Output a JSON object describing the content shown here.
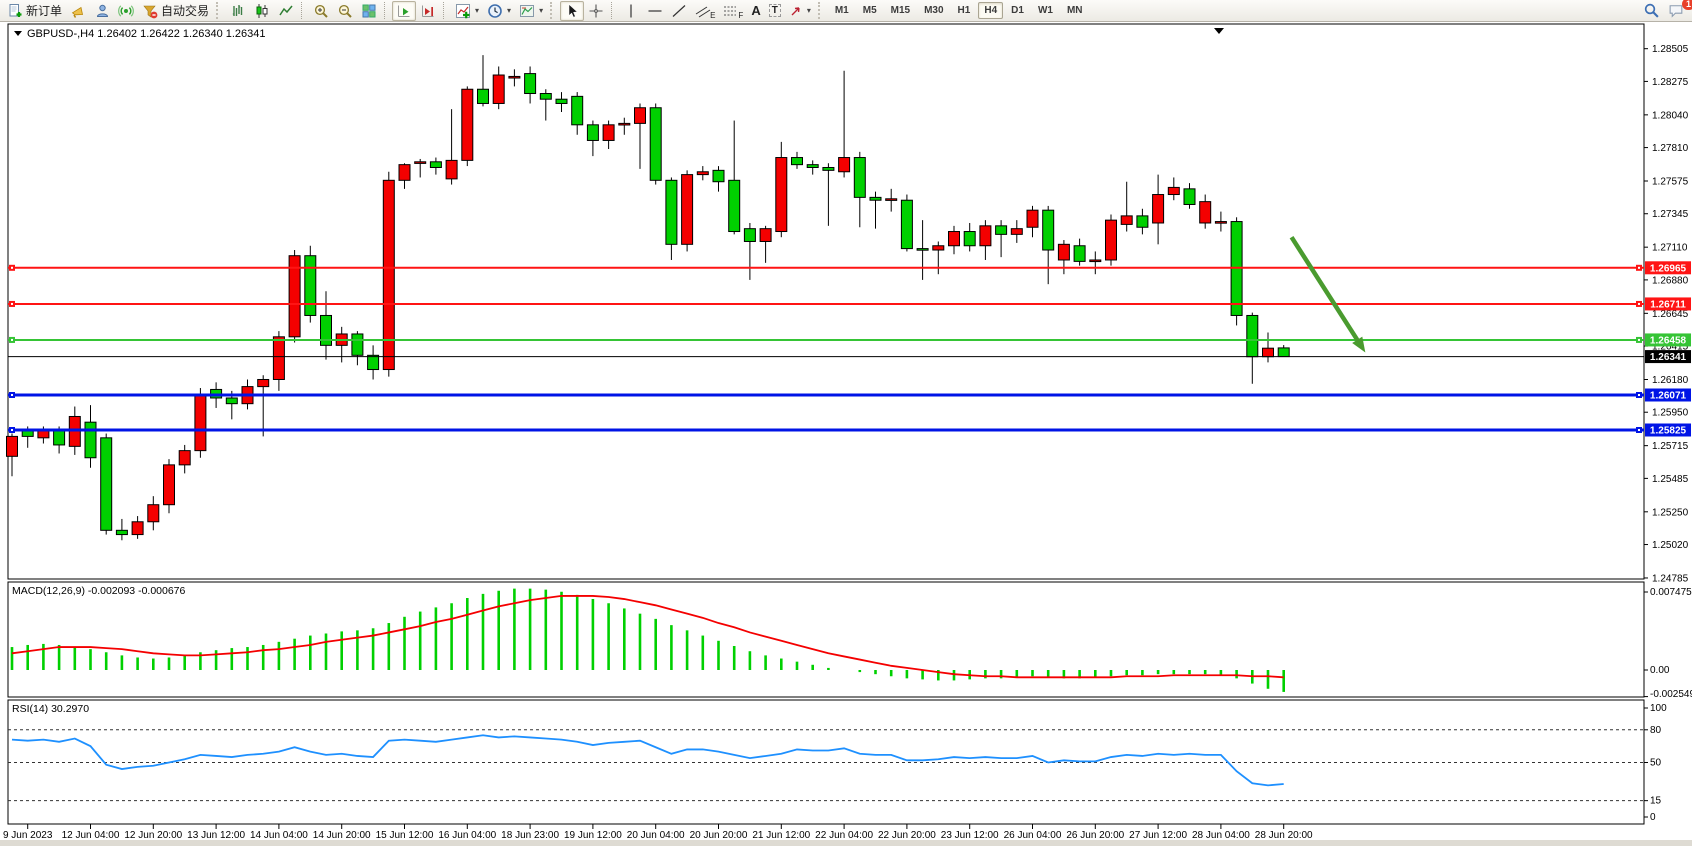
{
  "toolbar": {
    "new_order_label": "新订单",
    "auto_trading_label": "自动交易",
    "glyph_channel": "E",
    "glyph_fibo": "F",
    "glyph_text": "A",
    "glyph_label": "T",
    "timeframes": [
      "M1",
      "M5",
      "M15",
      "M30",
      "H1",
      "H4",
      "D1",
      "W1",
      "MN"
    ],
    "active_timeframe": "H4",
    "notification_count": "1"
  },
  "chart_data": {
    "type": "candlestick",
    "symbol": "GBPUSD-,H4",
    "ohlc_display": "1.26402 1.26422 1.26340 1.26341",
    "colors": {
      "up": "#f40000",
      "down": "#00d000",
      "wick": "#000000",
      "macd_hist": "#00d000",
      "macd_signal": "#f40000",
      "rsi": "#1e90ff",
      "arrow": "#4a9b2f",
      "bid": "#000000"
    },
    "price_axis": [
      "1.28505",
      "1.28275",
      "1.28040",
      "1.27810",
      "1.27575",
      "1.27345",
      "1.27110",
      "1.26880",
      "1.26645",
      "1.26415",
      "1.26180",
      "1.25950",
      "1.25715",
      "1.25485",
      "1.25250",
      "1.25020",
      "1.24785"
    ],
    "hlines": [
      {
        "price": 1.26965,
        "label": "1.26965",
        "color": "#ff1414",
        "width": 2
      },
      {
        "price": 1.26711,
        "label": "1.26711",
        "color": "#ff1414",
        "width": 2
      },
      {
        "price": 1.26458,
        "label": "1.26458",
        "color": "#35c435",
        "width": 2
      },
      {
        "price": 1.26071,
        "label": "1.26071",
        "color": "#0014e6",
        "width": 3
      },
      {
        "price": 1.25825,
        "label": "1.25825",
        "color": "#0014e6",
        "width": 3
      }
    ],
    "bid_line": {
      "price": 1.26341,
      "label": "1.26341"
    },
    "arrow": {
      "from_bar": 81.5,
      "from_price": 1.2718,
      "to_bar": 86.2,
      "to_price": 1.2637
    },
    "time_axis": [
      "9 Jun 2023",
      "12 Jun 04:00",
      "12 Jun 20:00",
      "13 Jun 12:00",
      "14 Jun 04:00",
      "14 Jun 20:00",
      "15 Jun 12:00",
      "16 Jun 04:00",
      "18 Jun 23:00",
      "19 Jun 12:00",
      "20 Jun 04:00",
      "20 Jun 20:00",
      "21 Jun 12:00",
      "22 Jun 04:00",
      "22 Jun 20:00",
      "23 Jun 12:00",
      "26 Jun 04:00",
      "26 Jun 20:00",
      "27 Jun 12:00",
      "28 Jun 04:00",
      "28 Jun 20:00"
    ],
    "candles": [
      [
        1.2564,
        1.258,
        1.255,
        1.2578
      ],
      [
        1.2582,
        1.2585,
        1.257,
        1.2578
      ],
      [
        1.2577,
        1.2585,
        1.2573,
        1.2582
      ],
      [
        1.2582,
        1.2585,
        1.2566,
        1.2572
      ],
      [
        1.2571,
        1.2599,
        1.2565,
        1.2592
      ],
      [
        1.2588,
        1.26,
        1.2556,
        1.2563
      ],
      [
        1.2577,
        1.258,
        1.2509,
        1.2512
      ],
      [
        1.2512,
        1.252,
        1.2505,
        1.2509
      ],
      [
        1.2509,
        1.2522,
        1.2506,
        1.2518
      ],
      [
        1.2518,
        1.2536,
        1.2512,
        1.253
      ],
      [
        1.253,
        1.2562,
        1.2524,
        1.2558
      ],
      [
        1.2558,
        1.2572,
        1.2552,
        1.2568
      ],
      [
        1.2568,
        1.2612,
        1.2563,
        1.2607
      ],
      [
        1.2611,
        1.2616,
        1.2598,
        1.2605
      ],
      [
        1.2605,
        1.261,
        1.259,
        1.2601
      ],
      [
        1.2601,
        1.2618,
        1.2597,
        1.2613
      ],
      [
        1.2613,
        1.2621,
        1.2578,
        1.2618
      ],
      [
        1.2618,
        1.2652,
        1.261,
        1.2648
      ],
      [
        1.2648,
        1.2709,
        1.2644,
        1.2705
      ],
      [
        1.2705,
        1.2712,
        1.2658,
        1.2663
      ],
      [
        1.2663,
        1.268,
        1.2632,
        1.2642
      ],
      [
        1.2642,
        1.2655,
        1.263,
        1.265
      ],
      [
        1.265,
        1.2652,
        1.2628,
        1.2635
      ],
      [
        1.2635,
        1.2642,
        1.2618,
        1.2625
      ],
      [
        1.2625,
        1.2764,
        1.262,
        1.2758
      ],
      [
        1.2758,
        1.277,
        1.2752,
        1.2769
      ],
      [
        1.277,
        1.2773,
        1.276,
        1.2771
      ],
      [
        1.2771,
        1.2774,
        1.2762,
        1.2767
      ],
      [
        1.2759,
        1.2808,
        1.2755,
        1.2772
      ],
      [
        1.2772,
        1.2824,
        1.2768,
        1.2822
      ],
      [
        1.2822,
        1.2846,
        1.281,
        1.2812
      ],
      [
        1.2812,
        1.2838,
        1.2808,
        1.2832
      ],
      [
        1.283,
        1.2836,
        1.2824,
        1.2831
      ],
      [
        1.2833,
        1.2838,
        1.2812,
        1.2819
      ],
      [
        1.2819,
        1.2822,
        1.28,
        1.2815
      ],
      [
        1.2815,
        1.282,
        1.2806,
        1.2812
      ],
      [
        1.2817,
        1.282,
        1.279,
        1.2797
      ],
      [
        1.2797,
        1.28,
        1.2775,
        1.2786
      ],
      [
        1.2786,
        1.28,
        1.278,
        1.2797
      ],
      [
        1.2797,
        1.2802,
        1.279,
        1.2798
      ],
      [
        1.2798,
        1.2812,
        1.2766,
        1.2809
      ],
      [
        1.2809,
        1.2812,
        1.2755,
        1.2758
      ],
      [
        1.2758,
        1.276,
        1.2702,
        1.2713
      ],
      [
        1.2713,
        1.2765,
        1.2708,
        1.2762
      ],
      [
        1.2762,
        1.2768,
        1.2758,
        1.2764
      ],
      [
        1.2765,
        1.2768,
        1.275,
        1.2757
      ],
      [
        1.2758,
        1.28,
        1.272,
        1.2722
      ],
      [
        1.2724,
        1.2728,
        1.2688,
        1.2715
      ],
      [
        1.2715,
        1.2726,
        1.27,
        1.2724
      ],
      [
        1.2722,
        1.2785,
        1.2718,
        1.2774
      ],
      [
        1.2774,
        1.2778,
        1.2766,
        1.2769
      ],
      [
        1.2769,
        1.2772,
        1.2762,
        1.2767
      ],
      [
        1.2767,
        1.277,
        1.2726,
        1.2765
      ],
      [
        1.2764,
        1.2835,
        1.276,
        1.2774
      ],
      [
        1.2774,
        1.2778,
        1.2725,
        1.2746
      ],
      [
        1.2746,
        1.275,
        1.2724,
        1.2744
      ],
      [
        1.2744,
        1.2752,
        1.2736,
        1.2745
      ],
      [
        1.2744,
        1.2748,
        1.2708,
        1.271
      ],
      [
        1.271,
        1.273,
        1.2688,
        1.2709
      ],
      [
        1.2709,
        1.2715,
        1.2692,
        1.2712
      ],
      [
        1.2712,
        1.2726,
        1.2706,
        1.2722
      ],
      [
        1.2722,
        1.2728,
        1.2708,
        1.2712
      ],
      [
        1.2712,
        1.273,
        1.2702,
        1.2726
      ],
      [
        1.2726,
        1.273,
        1.2704,
        1.272
      ],
      [
        1.272,
        1.273,
        1.2714,
        1.2724
      ],
      [
        1.2725,
        1.274,
        1.2718,
        1.2737
      ],
      [
        1.2737,
        1.274,
        1.2685,
        1.2709
      ],
      [
        1.2702,
        1.2716,
        1.2692,
        1.2713
      ],
      [
        1.2712,
        1.2717,
        1.2698,
        1.2701
      ],
      [
        1.2702,
        1.2708,
        1.2692,
        1.2702
      ],
      [
        1.2702,
        1.2734,
        1.2698,
        1.273
      ],
      [
        1.2727,
        1.2757,
        1.2722,
        1.2733
      ],
      [
        1.2733,
        1.2738,
        1.272,
        1.2725
      ],
      [
        1.2728,
        1.2762,
        1.2713,
        1.2748
      ],
      [
        1.2748,
        1.276,
        1.2744,
        1.2753
      ],
      [
        1.2752,
        1.2756,
        1.2738,
        1.2741
      ],
      [
        1.2728,
        1.2748,
        1.2724,
        1.2743
      ],
      [
        1.2729,
        1.2736,
        1.2722,
        1.2729
      ],
      [
        1.2729,
        1.2732,
        1.2656,
        1.2663
      ],
      [
        1.2663,
        1.2665,
        1.2615,
        1.2634
      ],
      [
        1.2634,
        1.2651,
        1.263,
        1.264
      ],
      [
        1.26402,
        1.26422,
        1.2634,
        1.26341
      ]
    ],
    "macd": {
      "label": "MACD(12,26,9)",
      "values_display": "-0.002093 -0.000676",
      "axis": [
        "0.007475",
        "0.00",
        "-0.002549"
      ],
      "histogram": [
        0.0022,
        0.0024,
        0.0025,
        0.0024,
        0.0022,
        0.002,
        0.0017,
        0.0014,
        0.0012,
        0.0011,
        0.0012,
        0.0014,
        0.0017,
        0.0019,
        0.0021,
        0.0022,
        0.0024,
        0.0027,
        0.003,
        0.0033,
        0.0035,
        0.0037,
        0.0038,
        0.004,
        0.0045,
        0.0051,
        0.0056,
        0.006,
        0.0064,
        0.0069,
        0.0073,
        0.0076,
        0.0078,
        0.0078,
        0.0077,
        0.0075,
        0.0072,
        0.0068,
        0.0064,
        0.0059,
        0.0054,
        0.0049,
        0.0043,
        0.0038,
        0.0033,
        0.0028,
        0.0023,
        0.0018,
        0.0014,
        0.0011,
        0.0008,
        0.0005,
        0.0002,
        0.0,
        -0.0002,
        -0.0004,
        -0.0006,
        -0.0008,
        -0.0009,
        -0.001,
        -0.001,
        -0.0009,
        -0.0008,
        -0.0008,
        -0.0007,
        -0.0006,
        -0.0007,
        -0.0008,
        -0.0008,
        -0.0007,
        -0.0006,
        -0.0005,
        -0.0005,
        -0.0004,
        -0.0004,
        -0.0004,
        -0.0004,
        -0.0005,
        -0.0008,
        -0.0013,
        -0.0018,
        -0.0021
      ],
      "signal": [
        0.0016,
        0.0018,
        0.002,
        0.0022,
        0.0022,
        0.0022,
        0.0021,
        0.002,
        0.0018,
        0.0016,
        0.0015,
        0.0014,
        0.0014,
        0.0015,
        0.0016,
        0.0017,
        0.0019,
        0.002,
        0.0022,
        0.0024,
        0.0027,
        0.0029,
        0.0031,
        0.0033,
        0.0036,
        0.0039,
        0.0042,
        0.0046,
        0.0049,
        0.0053,
        0.0057,
        0.0061,
        0.0064,
        0.0067,
        0.0069,
        0.0071,
        0.0071,
        0.0071,
        0.007,
        0.0068,
        0.0065,
        0.0062,
        0.0058,
        0.0054,
        0.005,
        0.0045,
        0.0041,
        0.0036,
        0.0032,
        0.0028,
        0.0024,
        0.002,
        0.0016,
        0.0013,
        0.001,
        0.0007,
        0.0004,
        0.0002,
        0.0,
        -0.0002,
        -0.0004,
        -0.0005,
        -0.0006,
        -0.0006,
        -0.0007,
        -0.0007,
        -0.0007,
        -0.0007,
        -0.0007,
        -0.0007,
        -0.0007,
        -0.0006,
        -0.0006,
        -0.0006,
        -0.0005,
        -0.0005,
        -0.0005,
        -0.0005,
        -0.0005,
        -0.0006,
        -0.0006,
        -0.0007
      ]
    },
    "rsi": {
      "label": "RSI(14)",
      "value_display": "30.2970",
      "levels": [
        80,
        50,
        15
      ],
      "axis": [
        "100",
        "80",
        "50",
        "15",
        "0"
      ],
      "values": [
        71,
        70,
        71,
        69,
        72,
        65,
        48,
        44,
        46,
        47,
        50,
        53,
        57,
        56,
        55,
        57,
        58,
        60,
        64,
        60,
        57,
        58,
        56,
        55,
        70,
        71,
        70,
        69,
        71,
        73,
        75,
        73,
        74,
        73,
        72,
        71,
        69,
        66,
        68,
        69,
        70,
        64,
        58,
        62,
        62,
        60,
        57,
        54,
        56,
        58,
        62,
        61,
        61,
        63,
        58,
        57,
        57,
        52,
        52,
        53,
        55,
        54,
        55,
        54,
        54,
        56,
        50,
        52,
        51,
        51,
        55,
        57,
        56,
        58,
        57,
        58,
        57,
        57,
        42,
        31,
        29,
        30.3
      ]
    }
  }
}
